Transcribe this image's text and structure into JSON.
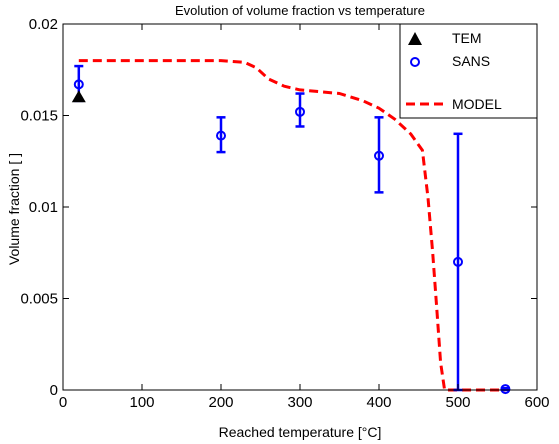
{
  "chart_data": {
    "type": "scatter",
    "title": "Evolution of volume fraction vs temperature",
    "xlabel": "Reached temperature [°C]",
    "ylabel": "Volume fraction [ ]",
    "xlim": [
      0,
      600
    ],
    "ylim": [
      0,
      0.02
    ],
    "xticks": [
      0,
      100,
      200,
      300,
      400,
      500,
      600
    ],
    "xtick_labels": [
      "0",
      "100",
      "200",
      "300",
      "400",
      "500",
      "600"
    ],
    "yticks": [
      0,
      0.005,
      0.01,
      0.015,
      0.02
    ],
    "ytick_labels": [
      "0",
      "0.005",
      "0.01",
      "0.015",
      "0.02"
    ],
    "grid": false,
    "legend_position": "top-right",
    "series": [
      {
        "name": "TEM",
        "kind": "marker",
        "marker": "triangle",
        "color": "#000000",
        "x": [
          20
        ],
        "y": [
          0.016
        ]
      },
      {
        "name": "SANS",
        "kind": "errorbar",
        "marker": "circle",
        "color": "#0000ff",
        "x": [
          20,
          200,
          300,
          400,
          500,
          560
        ],
        "y": [
          0.0167,
          0.0139,
          0.0152,
          0.0128,
          0.007,
          5e-05
        ],
        "yerr_low": [
          0.0158,
          0.013,
          0.0144,
          0.0108,
          0,
          0
        ],
        "yerr_high": [
          0.0177,
          0.0149,
          0.0162,
          0.0149,
          0.014,
          0.0001
        ]
      },
      {
        "name": "MODEL",
        "kind": "line",
        "dash": true,
        "color": "#ff0000",
        "x": [
          20,
          100,
          200,
          230,
          245,
          260,
          280,
          300,
          350,
          380,
          400,
          420,
          440,
          455,
          462,
          468,
          473,
          478,
          483,
          500,
          560
        ],
        "y": [
          0.018,
          0.018,
          0.018,
          0.0179,
          0.0176,
          0.017,
          0.0166,
          0.0164,
          0.0162,
          0.0158,
          0.0154,
          0.0148,
          0.014,
          0.0131,
          0.0105,
          0.0075,
          0.0045,
          0.0015,
          0,
          0,
          0
        ]
      }
    ]
  }
}
